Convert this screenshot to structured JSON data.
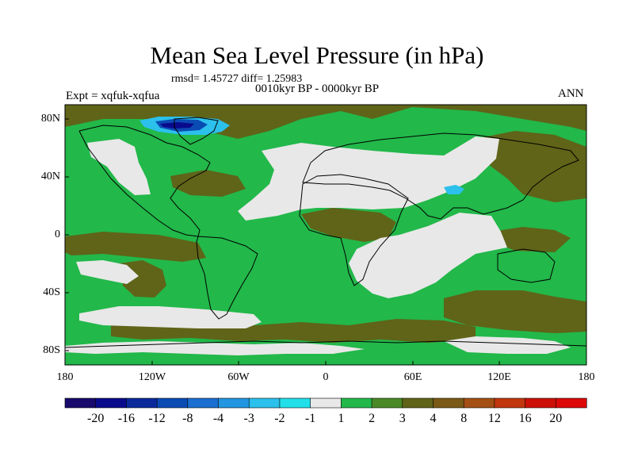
{
  "header": {
    "title": "Mean Sea Level Pressure (in hPa)",
    "stats": "rmsd= 1.45727 diff= 1.25983",
    "period": "0010kyr BP - 0000kyr BP",
    "experiment": "Expt = xqfuk-xqfua",
    "season": "ANN"
  },
  "axes": {
    "lat_ticks": [
      "80N",
      "40N",
      "0",
      "40S",
      "80S"
    ],
    "lon_ticks": [
      "180",
      "120W",
      "60W",
      "0",
      "60E",
      "120E",
      "180"
    ]
  },
  "colorbar": {
    "labels": [
      "-20",
      "-16",
      "-12",
      "-8",
      "-4",
      "-3",
      "-2",
      "-1",
      "1",
      "2",
      "3",
      "4",
      "8",
      "12",
      "16",
      "20"
    ],
    "colors": [
      "#170a6c",
      "#0a0a8c",
      "#0a2a9c",
      "#0a4bb4",
      "#1a6fd0",
      "#2296e0",
      "#2cc0ec",
      "#22e0ea",
      "#e8e8e8",
      "#22b84a",
      "#4a8a26",
      "#5f6418",
      "#7a5a16",
      "#a45014",
      "#c2360e",
      "#cc1008",
      "#dd0808"
    ]
  },
  "colors": {
    "land_outline": "#000000",
    "zero_band": "#e8e8e8",
    "band_1_2": "#22b84a",
    "band_3_4": "#5f6418"
  }
}
